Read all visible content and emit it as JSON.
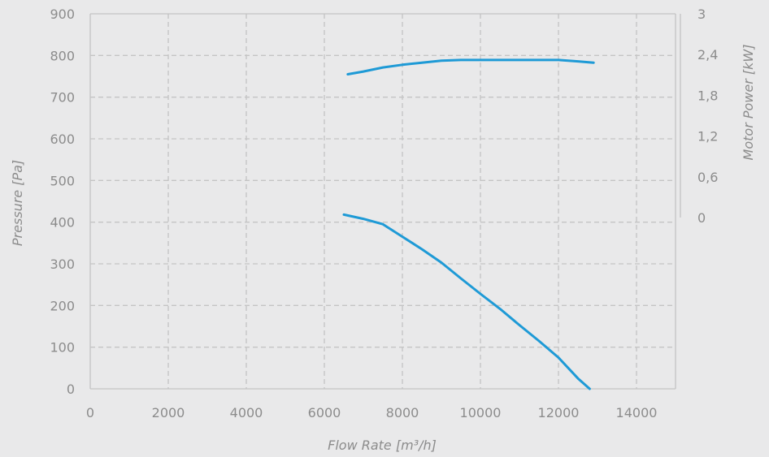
{
  "chart_data": {
    "type": "line",
    "xlabel": "Flow Rate [m³/h]",
    "ylabel": "Pressure [Pa]",
    "y2label": "Motor Power [kW]",
    "xlim": [
      0,
      15000
    ],
    "ylim": [
      0,
      900
    ],
    "y2lim": [
      0,
      3
    ],
    "x_ticks": [
      "0",
      "2000",
      "4000",
      "6000",
      "8000",
      "10000",
      "12000",
      "14000"
    ],
    "x_tick_values": [
      0,
      2000,
      4000,
      6000,
      8000,
      10000,
      12000,
      14000
    ],
    "y_ticks": [
      "0",
      "100",
      "200",
      "300",
      "400",
      "500",
      "600",
      "700",
      "800",
      "900"
    ],
    "y_tick_values": [
      0,
      100,
      200,
      300,
      400,
      500,
      600,
      700,
      800,
      900
    ],
    "y2_ticks": [
      "0",
      "0,6",
      "1,2",
      "1,8",
      "2,4",
      "3"
    ],
    "y2_tick_values": [
      0,
      0.6,
      1.2,
      1.8,
      2.4,
      3
    ],
    "grid": true,
    "color": "#1e9ad6",
    "series": [
      {
        "axis": "y",
        "x": [
          6500,
          7000,
          7500,
          8000,
          8500,
          9000,
          9500,
          10000,
          10500,
          11000,
          11500,
          12000,
          12500,
          12800
        ],
        "y": [
          418,
          408,
          395,
          365,
          335,
          303,
          265,
          228,
          192,
          153,
          115,
          75,
          25,
          0
        ]
      },
      {
        "axis": "y2",
        "x": [
          6600,
          7000,
          7500,
          8000,
          8500,
          9000,
          9500,
          10000,
          10500,
          11000,
          11500,
          12000,
          12500,
          12900
        ],
        "y": [
          2.11,
          2.15,
          2.21,
          2.25,
          2.28,
          2.31,
          2.32,
          2.32,
          2.32,
          2.32,
          2.32,
          2.32,
          2.3,
          2.28
        ]
      }
    ]
  }
}
